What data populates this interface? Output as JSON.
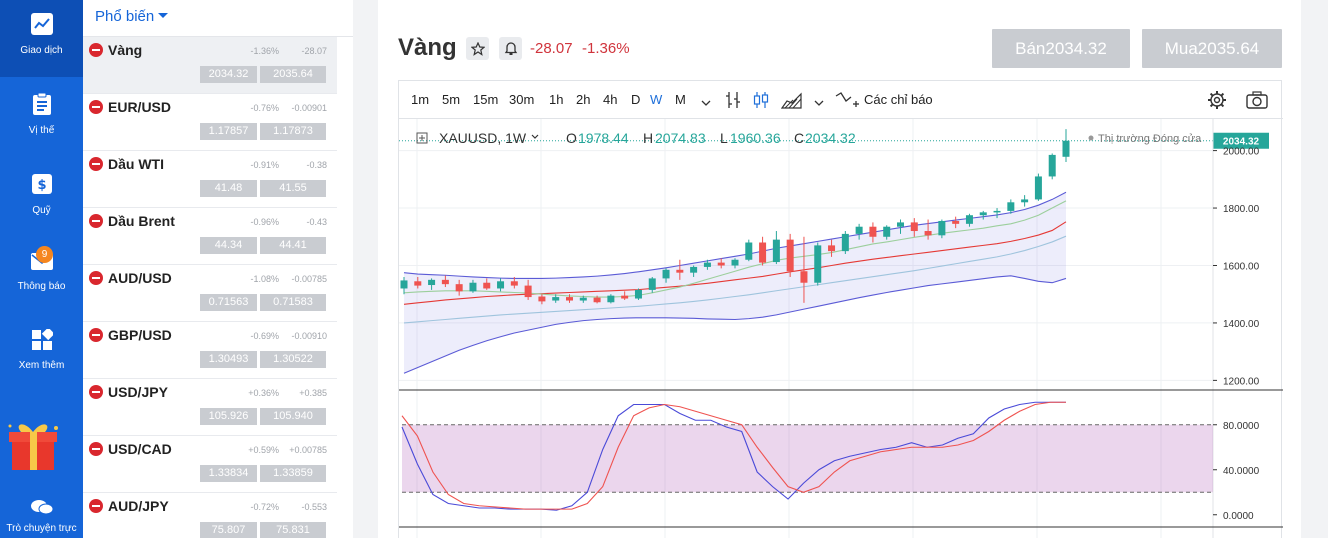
{
  "nav": {
    "items": [
      {
        "label": "Giao dịch",
        "icon": "chart-line-icon"
      },
      {
        "label": "Vị thế",
        "icon": "clipboard-icon"
      },
      {
        "label": "Quỹ",
        "icon": "wallet-icon"
      },
      {
        "label": "Thông báo",
        "icon": "mail-icon",
        "badge": "9"
      },
      {
        "label": "Xem thêm",
        "icon": "apps-grid-icon"
      },
      {
        "label": "Trò chuyện trực",
        "icon": "chat-icon"
      }
    ]
  },
  "watchlist": {
    "header": "Phổ biến",
    "rows": [
      {
        "name": "Vàng",
        "pct": "-1.36%",
        "chg": "-28.07",
        "bid": "2034.32",
        "ask": "2035.64"
      },
      {
        "name": "EUR/USD",
        "pct": "-0.76%",
        "chg": "-0.00901",
        "bid": "1.17857",
        "ask": "1.17873"
      },
      {
        "name": "Dầu WTI",
        "pct": "-0.91%",
        "chg": "-0.38",
        "bid": "41.48",
        "ask": "41.55"
      },
      {
        "name": "Dầu Brent",
        "pct": "-0.96%",
        "chg": "-0.43",
        "bid": "44.34",
        "ask": "44.41"
      },
      {
        "name": "AUD/USD",
        "pct": "-1.08%",
        "chg": "-0.00785",
        "bid": "0.71563",
        "ask": "0.71583"
      },
      {
        "name": "GBP/USD",
        "pct": "-0.69%",
        "chg": "-0.00910",
        "bid": "1.30493",
        "ask": "1.30522"
      },
      {
        "name": "USD/JPY",
        "pct": "+0.36%",
        "chg": "+0.385",
        "bid": "105.926",
        "ask": "105.940"
      },
      {
        "name": "USD/CAD",
        "pct": "+0.59%",
        "chg": "+0.00785",
        "bid": "1.33834",
        "ask": "1.33859"
      },
      {
        "name": "AUD/JPY",
        "pct": "-0.72%",
        "chg": "-0.553",
        "bid": "75.807",
        "ask": "75.831"
      }
    ]
  },
  "main": {
    "title": "Vàng",
    "change": "-28.07",
    "change_pct": "-1.36%",
    "sell_label": "Bán2034.32",
    "buy_label": "Mua2035.64"
  },
  "toolbar": {
    "timeframes": [
      "1m",
      "5m",
      "15m",
      "30m",
      "1h",
      "2h",
      "4h",
      "D",
      "W",
      "M"
    ],
    "active_timeframe": "W",
    "indicators_label": "Các chỉ báo"
  },
  "legend": {
    "symbol": "XAUUSD, 1W",
    "o_label": "O",
    "o": "1978.44",
    "h_label": "H",
    "h": "2074.83",
    "l_label": "L",
    "l": "1960.36",
    "c_label": "C",
    "c": "2034.32",
    "market_status": "Thị trường Đóng cửa",
    "last_price_tag": "2034.32"
  },
  "colors": {
    "up": "#26a69a",
    "down": "#ef5350",
    "accent": "#1565d8",
    "negative": "#d0343c"
  },
  "chart_data": [
    {
      "type": "candlestick",
      "title": "XAUUSD, 1W",
      "y_ticks": [
        "2000.00",
        "1800.00",
        "1600.00",
        "1400.00",
        "1200.00"
      ],
      "ylim": [
        1170,
        2110
      ],
      "candles": [
        [
          1520,
          1560,
          1500,
          1548
        ],
        [
          1545,
          1560,
          1520,
          1530
        ],
        [
          1532,
          1555,
          1515,
          1550
        ],
        [
          1550,
          1565,
          1525,
          1535
        ],
        [
          1535,
          1550,
          1495,
          1510
        ],
        [
          1510,
          1550,
          1505,
          1540
        ],
        [
          1540,
          1555,
          1515,
          1520
        ],
        [
          1520,
          1555,
          1510,
          1545
        ],
        [
          1545,
          1560,
          1520,
          1530
        ],
        [
          1530,
          1550,
          1480,
          1490
        ],
        [
          1492,
          1500,
          1465,
          1475
        ],
        [
          1478,
          1500,
          1470,
          1490
        ],
        [
          1490,
          1500,
          1470,
          1478
        ],
        [
          1478,
          1495,
          1470,
          1488
        ],
        [
          1488,
          1495,
          1468,
          1472
        ],
        [
          1472,
          1500,
          1468,
          1495
        ],
        [
          1495,
          1510,
          1480,
          1485
        ],
        [
          1485,
          1520,
          1480,
          1515
        ],
        [
          1515,
          1560,
          1505,
          1555
        ],
        [
          1555,
          1590,
          1540,
          1585
        ],
        [
          1585,
          1620,
          1550,
          1575
        ],
        [
          1575,
          1600,
          1560,
          1595
        ],
        [
          1595,
          1620,
          1585,
          1610
        ],
        [
          1610,
          1625,
          1590,
          1600
        ],
        [
          1600,
          1625,
          1590,
          1620
        ],
        [
          1620,
          1690,
          1615,
          1680
        ],
        [
          1680,
          1700,
          1600,
          1610
        ],
        [
          1612,
          1720,
          1605,
          1690
        ],
        [
          1690,
          1710,
          1560,
          1580
        ],
        [
          1580,
          1700,
          1470,
          1540
        ],
        [
          1540,
          1680,
          1530,
          1670
        ],
        [
          1670,
          1690,
          1630,
          1650
        ],
        [
          1650,
          1720,
          1640,
          1710
        ],
        [
          1710,
          1745,
          1690,
          1735
        ],
        [
          1735,
          1750,
          1680,
          1700
        ],
        [
          1700,
          1740,
          1690,
          1735
        ],
        [
          1735,
          1760,
          1710,
          1750
        ],
        [
          1750,
          1765,
          1700,
          1720
        ],
        [
          1720,
          1760,
          1690,
          1705
        ],
        [
          1705,
          1760,
          1695,
          1755
        ],
        [
          1755,
          1770,
          1730,
          1745
        ],
        [
          1745,
          1780,
          1735,
          1775
        ],
        [
          1775,
          1790,
          1760,
          1785
        ],
        [
          1785,
          1800,
          1765,
          1790
        ],
        [
          1790,
          1830,
          1780,
          1820
        ],
        [
          1820,
          1845,
          1805,
          1830
        ],
        [
          1830,
          1920,
          1825,
          1910
        ],
        [
          1910,
          1990,
          1900,
          1985
        ],
        [
          1978.44,
          2074.83,
          1960.36,
          2034.32
        ]
      ],
      "series": [
        {
          "color": "#5b5bd6",
          "values": [
            1575,
            1570,
            1568,
            1566,
            1563,
            1560,
            1558,
            1556,
            1555,
            1555,
            1555,
            1556,
            1558,
            1560,
            1563,
            1567,
            1572,
            1578,
            1585,
            1592,
            1600,
            1608,
            1616,
            1624,
            1632,
            1640,
            1650,
            1660,
            1668,
            1676,
            1684,
            1692,
            1700,
            1708,
            1716,
            1724,
            1732,
            1740,
            1746,
            1752,
            1758,
            1764,
            1770,
            1776,
            1784,
            1795,
            1810,
            1830,
            1855
          ]
        },
        {
          "color": "#5b5bd6",
          "values": [
            1225,
            1245,
            1265,
            1285,
            1305,
            1322,
            1338,
            1352,
            1365,
            1375,
            1385,
            1395,
            1402,
            1408,
            1412,
            1415,
            1417,
            1418,
            1418,
            1418,
            1417,
            1416,
            1414,
            1413,
            1412,
            1415,
            1420,
            1428,
            1438,
            1448,
            1458,
            1468,
            1478,
            1488,
            1497,
            1506,
            1514,
            1522,
            1530,
            1536,
            1542,
            1548,
            1554,
            1560,
            1564,
            1555,
            1545,
            1540,
            1555
          ]
        },
        {
          "color": "#e53935",
          "values": [
            1465,
            1470,
            1475,
            1480,
            1484,
            1488,
            1492,
            1495,
            1498,
            1500,
            1502,
            1504,
            1506,
            1508,
            1510,
            1512,
            1514,
            1516,
            1520,
            1524,
            1528,
            1533,
            1538,
            1544,
            1550,
            1556,
            1562,
            1570,
            1578,
            1585,
            1592,
            1600,
            1608,
            1615,
            1622,
            1628,
            1634,
            1640,
            1646,
            1652,
            1658,
            1664,
            1670,
            1676,
            1684,
            1694,
            1706,
            1722,
            1752
          ]
        },
        {
          "color": "#9ccf9c",
          "values": [
            1505,
            1508,
            1510,
            1512,
            1512,
            1512,
            1510,
            1508,
            1506,
            1504,
            1500,
            1497,
            1494,
            1492,
            1490,
            1490,
            1492,
            1496,
            1505,
            1515,
            1525,
            1538,
            1552,
            1566,
            1580,
            1594,
            1606,
            1618,
            1626,
            1632,
            1638,
            1645,
            1655,
            1665,
            1675,
            1682,
            1690,
            1698,
            1705,
            1712,
            1718,
            1724,
            1730,
            1738,
            1745,
            1758,
            1775,
            1800,
            1825
          ]
        },
        {
          "color": "#9fc4dd",
          "values": [
            1400,
            1404,
            1408,
            1412,
            1416,
            1420,
            1424,
            1428,
            1431,
            1434,
            1437,
            1440,
            1443,
            1446,
            1449,
            1452,
            1455,
            1458,
            1462,
            1466,
            1470,
            1475,
            1480,
            1486,
            1492,
            1498,
            1505,
            1512,
            1519,
            1526,
            1533,
            1540,
            1547,
            1554,
            1561,
            1568,
            1575,
            1582,
            1590,
            1598,
            1606,
            1614,
            1622,
            1630,
            1640,
            1652,
            1666,
            1682,
            1702
          ]
        }
      ]
    },
    {
      "type": "line",
      "y_ticks": [
        "80.0000",
        "40.0000",
        "0.0000"
      ],
      "ylim": [
        -10,
        110
      ],
      "band": [
        20,
        80
      ],
      "series": [
        {
          "color": "#4a4ad8",
          "values": [
            78,
            45,
            18,
            10,
            8,
            6,
            6,
            5,
            5,
            5,
            4,
            8,
            20,
            58,
            88,
            98,
            98,
            98,
            90,
            84,
            84,
            78,
            74,
            38,
            25,
            14,
            28,
            40,
            48,
            52,
            55,
            58,
            60,
            64,
            60,
            62,
            68,
            72,
            86,
            94,
            98,
            100,
            100,
            100
          ]
        },
        {
          "color": "#ef5350",
          "values": [
            88,
            70,
            38,
            18,
            10,
            8,
            7,
            6,
            5,
            5,
            5,
            5,
            10,
            25,
            60,
            88,
            95,
            98,
            96,
            92,
            88,
            84,
            80,
            60,
            42,
            25,
            20,
            25,
            38,
            48,
            52,
            56,
            58,
            60,
            60,
            60,
            62,
            66,
            74,
            84,
            92,
            98,
            100,
            100
          ]
        }
      ]
    }
  ]
}
